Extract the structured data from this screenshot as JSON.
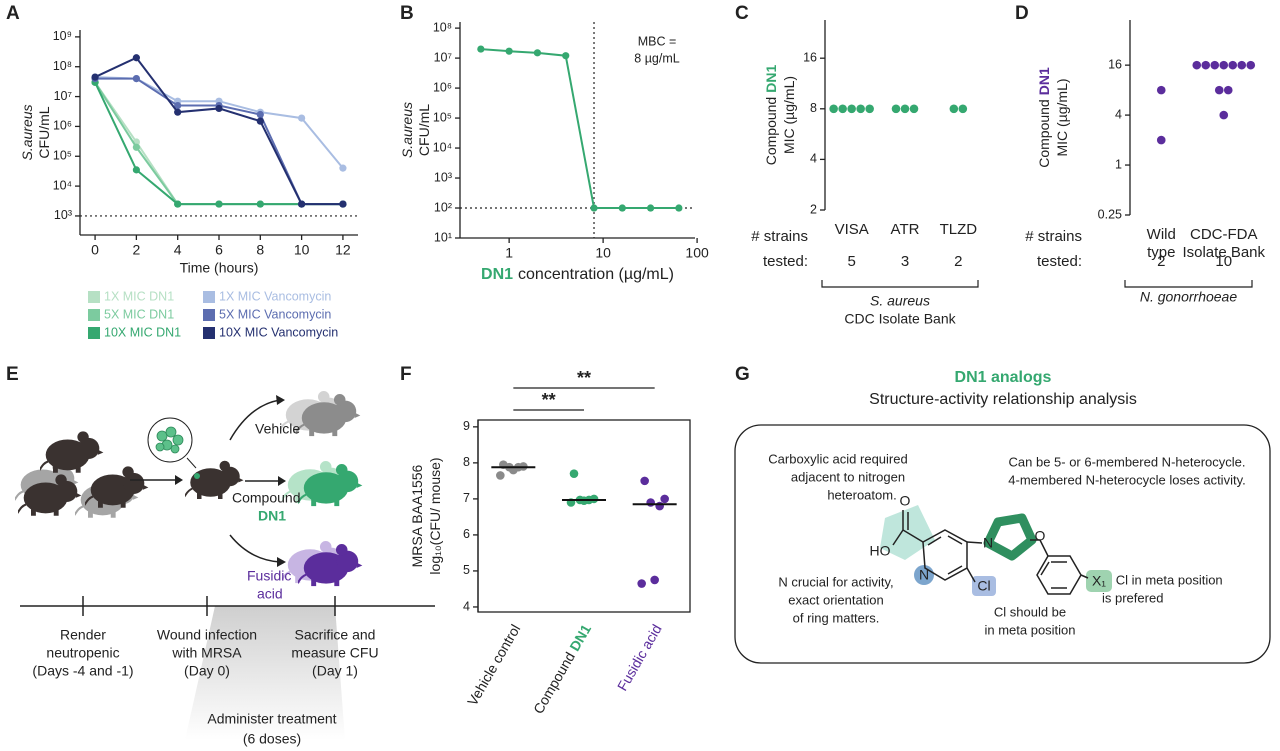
{
  "panel_labels": [
    "A",
    "B",
    "C",
    "D",
    "E",
    "F",
    "G"
  ],
  "chart_data": [
    {
      "type": "line",
      "ylabel": [
        "S.aureus",
        "CFU/mL"
      ],
      "ylabel_italic": true,
      "xlabel": "Time (hours)",
      "x": [
        0,
        2,
        4,
        6,
        8,
        10,
        12
      ],
      "xlim": [
        -0.73,
        12.73
      ],
      "xticks": [
        0,
        2,
        4,
        6,
        8,
        10,
        12
      ],
      "log_y": true,
      "ylim": [
        230,
        1700000000
      ],
      "yticks": [
        {
          "value": 1000,
          "label": "10³"
        },
        {
          "value": 10000,
          "label": "10⁴"
        },
        {
          "value": 100000,
          "label": "10⁵"
        },
        {
          "value": 1000000,
          "label": "10⁶"
        },
        {
          "value": 10000000,
          "label": "10⁷"
        },
        {
          "value": 100000000,
          "label": "10⁸"
        },
        {
          "value": 1000000000,
          "label": "10⁹"
        }
      ],
      "hline": 1000,
      "series": [
        {
          "name": "1X MIC DN1",
          "color": "#b6e0c4",
          "values": [
            30000000,
            300000,
            2500,
            2500,
            2500,
            2500,
            2500
          ]
        },
        {
          "name": "5X MIC DN1",
          "color": "#7ccb9f",
          "values": [
            30000000,
            200000,
            2500,
            2500,
            2500,
            2500,
            2500
          ]
        },
        {
          "name": "10X MIC DN1",
          "color": "#35a870",
          "values": [
            30000000,
            35000,
            2500,
            2500,
            2500,
            2500,
            2500
          ]
        },
        {
          "name": "1X MIC Vancomycin",
          "color": "#a9bde2",
          "values": [
            45000000,
            40000000,
            7000000,
            7000000,
            3000000,
            1900000,
            40000
          ]
        },
        {
          "name": "5X MIC Vancomycin",
          "color": "#5c6db0",
          "values": [
            40000000,
            40000000,
            5000000,
            5000000,
            2500000,
            2500,
            2500
          ]
        },
        {
          "name": "10X MIC Vancomycin",
          "color": "#243070",
          "values": [
            45000000,
            200000000,
            3000000,
            4000000,
            1500000,
            2500,
            2500
          ]
        }
      ],
      "legend": "below"
    },
    {
      "type": "line",
      "ylabel": [
        "S.aureus",
        "CFU/mL"
      ],
      "ylabel_italic": true,
      "xlabel_highlight": "DN1",
      "xlabel": "concentration (µg/mL)",
      "highlight_color": "#35a870",
      "x": [
        0.5,
        1,
        2,
        4,
        8,
        16,
        32,
        64
      ],
      "log_x": true,
      "xlim": [
        0.3,
        95
      ],
      "xticks": [
        1,
        10,
        100
      ],
      "log_y": true,
      "ylim": [
        10,
        160000000
      ],
      "yticks": [
        {
          "value": 10,
          "label": "10¹"
        },
        {
          "value": 100,
          "label": "10²"
        },
        {
          "value": 1000,
          "label": "10³"
        },
        {
          "value": 10000,
          "label": "10⁴"
        },
        {
          "value": 100000,
          "label": "10⁵"
        },
        {
          "value": 1000000,
          "label": "10⁶"
        },
        {
          "value": 10000000,
          "label": "10⁷"
        },
        {
          "value": 100000000,
          "label": "10⁸"
        }
      ],
      "values": [
        20000000,
        17000000,
        15000000,
        12000000,
        100,
        100,
        100,
        100
      ],
      "color": "#35a870",
      "hline": 100,
      "vline": 8,
      "annotation": [
        "MBC =",
        "8 µg/mL"
      ]
    },
    {
      "type": "strip",
      "ylabel": [
        "Compound",
        "MIC (µg/mL)"
      ],
      "ylabel_highlight": "DN1",
      "highlight_color": "#35a870",
      "categories": [
        "VISA",
        "ATR",
        "TLZD"
      ],
      "values": [
        [
          8,
          8,
          8,
          8,
          8
        ],
        [
          8,
          8,
          8
        ],
        [
          8,
          8
        ]
      ],
      "color": "#35a870",
      "log_y": true,
      "ylim": [
        2,
        27
      ],
      "yticks": [
        2,
        4,
        8,
        16
      ],
      "strains_label": [
        "# strains",
        "tested:"
      ],
      "strains_tested": [
        5,
        3,
        2
      ],
      "group_label": [
        "S. aureus",
        "CDC Isolate Bank"
      ]
    },
    {
      "type": "strip",
      "ylabel": [
        "Compound",
        "MIC (µg/mL)"
      ],
      "ylabel_highlight": "DN1",
      "highlight_color": "#5b2d9c",
      "categories": [
        [
          "Wild",
          "type"
        ],
        [
          "CDC-FDA",
          "Isolate Bank"
        ]
      ],
      "values": [
        [
          8,
          2
        ],
        [
          16,
          16,
          16,
          16,
          16,
          16,
          16,
          8,
          8,
          4
        ]
      ],
      "color": "#5b2d9c",
      "log_y": true,
      "ylim": [
        0.25,
        56
      ],
      "yticks": [
        0.25,
        1,
        4,
        16
      ],
      "strains_label": [
        "# strains",
        "tested:"
      ],
      "strains_tested": [
        2,
        10
      ],
      "group_label": [
        "N. gonorrhoeae"
      ]
    },
    {
      "type": "strip",
      "ylabel": [
        "MRSA BAA1556",
        "log₁₀(CFU/ mouse)"
      ],
      "categories": [
        "Vehicle control",
        "Compound",
        "Fusidic acid"
      ],
      "category_highlight": [
        null,
        "DN1",
        null
      ],
      "label_colors": [
        "#222222",
        "#35a870",
        "#5b2d9c"
      ],
      "colors": [
        "#8a8a8a",
        "#35a870",
        "#5b2d9c"
      ],
      "values": [
        [
          7.95,
          7.9,
          7.88,
          7.88,
          7.8,
          7.65
        ],
        [
          7.7,
          7.0,
          6.97,
          6.97,
          6.95,
          6.9
        ],
        [
          7.5,
          7.0,
          6.9,
          6.8,
          4.75,
          4.65
        ]
      ],
      "medians": [
        7.88,
        6.97,
        6.85
      ],
      "ylim": [
        3.86,
        9.19
      ],
      "yticks": [
        4,
        5,
        6,
        7,
        8,
        9
      ],
      "frame": true,
      "significance": [
        {
          "pair": [
            0,
            1
          ],
          "label": "**"
        },
        {
          "pair": [
            0,
            2
          ],
          "label": "**"
        }
      ]
    }
  ],
  "diagram_e": {
    "vehicle": "Vehicle",
    "compound": "Compound",
    "compound_name": "DN1",
    "fusidic": [
      "Fusidic",
      "acid"
    ],
    "timeline": [
      [
        "Render",
        "neutropenic",
        "(Days -4 and -1)"
      ],
      [
        "Wound infection",
        "with MRSA",
        "(Day 0)"
      ],
      [
        "Sacrifice and",
        "measure CFU",
        "(Day 1)"
      ]
    ],
    "treatment": [
      "Administer treatment",
      "(6 doses)"
    ]
  },
  "diagram_g": {
    "title": "DN1 analogs",
    "subtitle": "Structure-activity relationship analysis",
    "notes": [
      [
        "Carboxylic acid required",
        "adjacent to nitrogen",
        "heteroatom."
      ],
      [
        "Can be 5- or 6-membered N-heterocycle.",
        "4-membered N-heterocycle loses activity."
      ],
      [
        "N crucial for activity,",
        "exact orientation",
        "of ring matters."
      ],
      [
        "Cl should be",
        "in meta position"
      ],
      [
        "F, Cl  in meta position",
        "is prefered"
      ]
    ],
    "atoms": {
      "hydroxyl": "HO",
      "carbonyl": "O",
      "pyridine_n": "N",
      "chloro": "Cl",
      "pyrrolidine_n": "N",
      "ether": "O",
      "substituent": "X₁"
    }
  }
}
